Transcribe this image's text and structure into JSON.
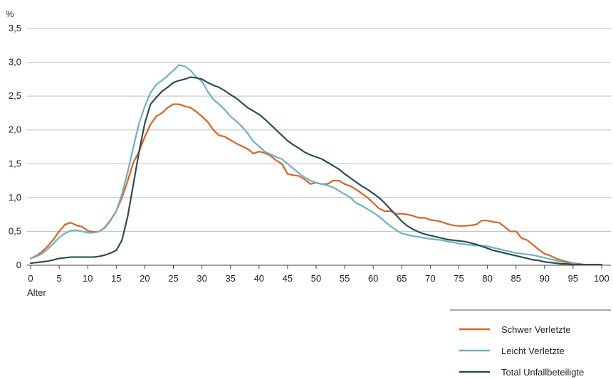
{
  "chart_data": {
    "type": "line",
    "ylabel": "%",
    "xlabel": "Alter",
    "xlim": [
      0,
      100
    ],
    "ylim": [
      0,
      3.5
    ],
    "x_ticks": [
      "0",
      "5",
      "10",
      "15",
      "20",
      "25",
      "30",
      "35",
      "40",
      "45",
      "50",
      "55",
      "60",
      "65",
      "70",
      "75",
      "80",
      "85",
      "90",
      "95",
      "100"
    ],
    "y_ticks": [
      "0",
      "0,5",
      "1,0",
      "1,5",
      "2,0",
      "2,5",
      "3,0",
      "3,5"
    ],
    "grid": "horizontal",
    "legend_position": "bottom-right",
    "x": [
      0,
      1,
      2,
      3,
      4,
      5,
      6,
      7,
      8,
      9,
      10,
      11,
      12,
      13,
      14,
      15,
      16,
      17,
      18,
      19,
      20,
      21,
      22,
      23,
      24,
      25,
      26,
      27,
      28,
      29,
      30,
      31,
      32,
      33,
      34,
      35,
      36,
      37,
      38,
      39,
      40,
      41,
      42,
      43,
      44,
      45,
      46,
      47,
      48,
      49,
      50,
      51,
      52,
      53,
      54,
      55,
      56,
      57,
      58,
      59,
      60,
      61,
      62,
      63,
      64,
      65,
      66,
      67,
      68,
      69,
      70,
      71,
      72,
      73,
      74,
      75,
      76,
      77,
      78,
      79,
      80,
      81,
      82,
      83,
      84,
      85,
      86,
      87,
      88,
      89,
      90,
      91,
      92,
      93,
      94,
      95,
      96,
      97,
      98,
      99,
      100
    ],
    "series": [
      {
        "name": "Schwer Verletzte",
        "color": "#d9622b",
        "values": [
          0.1,
          0.14,
          0.2,
          0.28,
          0.38,
          0.5,
          0.6,
          0.63,
          0.59,
          0.57,
          0.51,
          0.49,
          0.5,
          0.56,
          0.67,
          0.8,
          1.0,
          1.25,
          1.52,
          1.68,
          1.9,
          2.08,
          2.2,
          2.25,
          2.33,
          2.38,
          2.38,
          2.35,
          2.33,
          2.27,
          2.2,
          2.12,
          2.0,
          1.92,
          1.9,
          1.85,
          1.8,
          1.76,
          1.72,
          1.65,
          1.68,
          1.66,
          1.62,
          1.55,
          1.5,
          1.35,
          1.33,
          1.32,
          1.27,
          1.2,
          1.22,
          1.2,
          1.2,
          1.25,
          1.25,
          1.2,
          1.17,
          1.12,
          1.06,
          1.0,
          0.92,
          0.84,
          0.8,
          0.8,
          0.76,
          0.76,
          0.75,
          0.73,
          0.7,
          0.7,
          0.67,
          0.66,
          0.64,
          0.61,
          0.59,
          0.58,
          0.58,
          0.59,
          0.6,
          0.66,
          0.66,
          0.64,
          0.63,
          0.57,
          0.5,
          0.5,
          0.4,
          0.37,
          0.3,
          0.23,
          0.17,
          0.14,
          0.1,
          0.07,
          0.05,
          0.03,
          0.02,
          0.01,
          0.01,
          0.01,
          0.01
        ]
      },
      {
        "name": "Leicht Verletzte",
        "color": "#6db2c1",
        "values": [
          0.1,
          0.13,
          0.17,
          0.24,
          0.32,
          0.41,
          0.47,
          0.51,
          0.52,
          0.5,
          0.48,
          0.48,
          0.5,
          0.55,
          0.66,
          0.8,
          1.05,
          1.38,
          1.75,
          2.1,
          2.35,
          2.55,
          2.67,
          2.73,
          2.8,
          2.88,
          2.96,
          2.94,
          2.88,
          2.78,
          2.72,
          2.57,
          2.45,
          2.38,
          2.3,
          2.2,
          2.13,
          2.05,
          1.95,
          1.83,
          1.76,
          1.68,
          1.64,
          1.6,
          1.57,
          1.5,
          1.43,
          1.36,
          1.3,
          1.25,
          1.22,
          1.2,
          1.18,
          1.15,
          1.1,
          1.05,
          1.0,
          0.92,
          0.88,
          0.83,
          0.78,
          0.72,
          0.65,
          0.58,
          0.52,
          0.47,
          0.45,
          0.43,
          0.42,
          0.4,
          0.39,
          0.38,
          0.37,
          0.35,
          0.34,
          0.32,
          0.31,
          0.3,
          0.29,
          0.29,
          0.28,
          0.26,
          0.24,
          0.22,
          0.2,
          0.18,
          0.17,
          0.16,
          0.15,
          0.13,
          0.11,
          0.09,
          0.07,
          0.05,
          0.03,
          0.02,
          0.01,
          0.01,
          0.01,
          0.01,
          0.01
        ]
      },
      {
        "name": "Total Unfallbeteiligte",
        "color": "#2d4e52",
        "values": [
          0.03,
          0.04,
          0.05,
          0.06,
          0.08,
          0.1,
          0.11,
          0.12,
          0.12,
          0.12,
          0.12,
          0.12,
          0.13,
          0.15,
          0.18,
          0.22,
          0.37,
          0.72,
          1.2,
          1.68,
          2.1,
          2.38,
          2.48,
          2.57,
          2.63,
          2.7,
          2.73,
          2.75,
          2.78,
          2.77,
          2.75,
          2.7,
          2.66,
          2.63,
          2.58,
          2.52,
          2.47,
          2.4,
          2.33,
          2.28,
          2.23,
          2.16,
          2.08,
          2.0,
          1.92,
          1.84,
          1.78,
          1.73,
          1.67,
          1.63,
          1.6,
          1.57,
          1.52,
          1.47,
          1.42,
          1.35,
          1.29,
          1.23,
          1.17,
          1.12,
          1.06,
          1.0,
          0.92,
          0.83,
          0.74,
          0.65,
          0.58,
          0.53,
          0.49,
          0.46,
          0.44,
          0.42,
          0.4,
          0.38,
          0.37,
          0.36,
          0.35,
          0.33,
          0.31,
          0.28,
          0.25,
          0.22,
          0.2,
          0.18,
          0.16,
          0.14,
          0.12,
          0.1,
          0.08,
          0.07,
          0.05,
          0.04,
          0.03,
          0.02,
          0.02,
          0.01,
          0.01,
          0.01,
          0.01,
          0.01,
          0.01
        ]
      }
    ]
  }
}
